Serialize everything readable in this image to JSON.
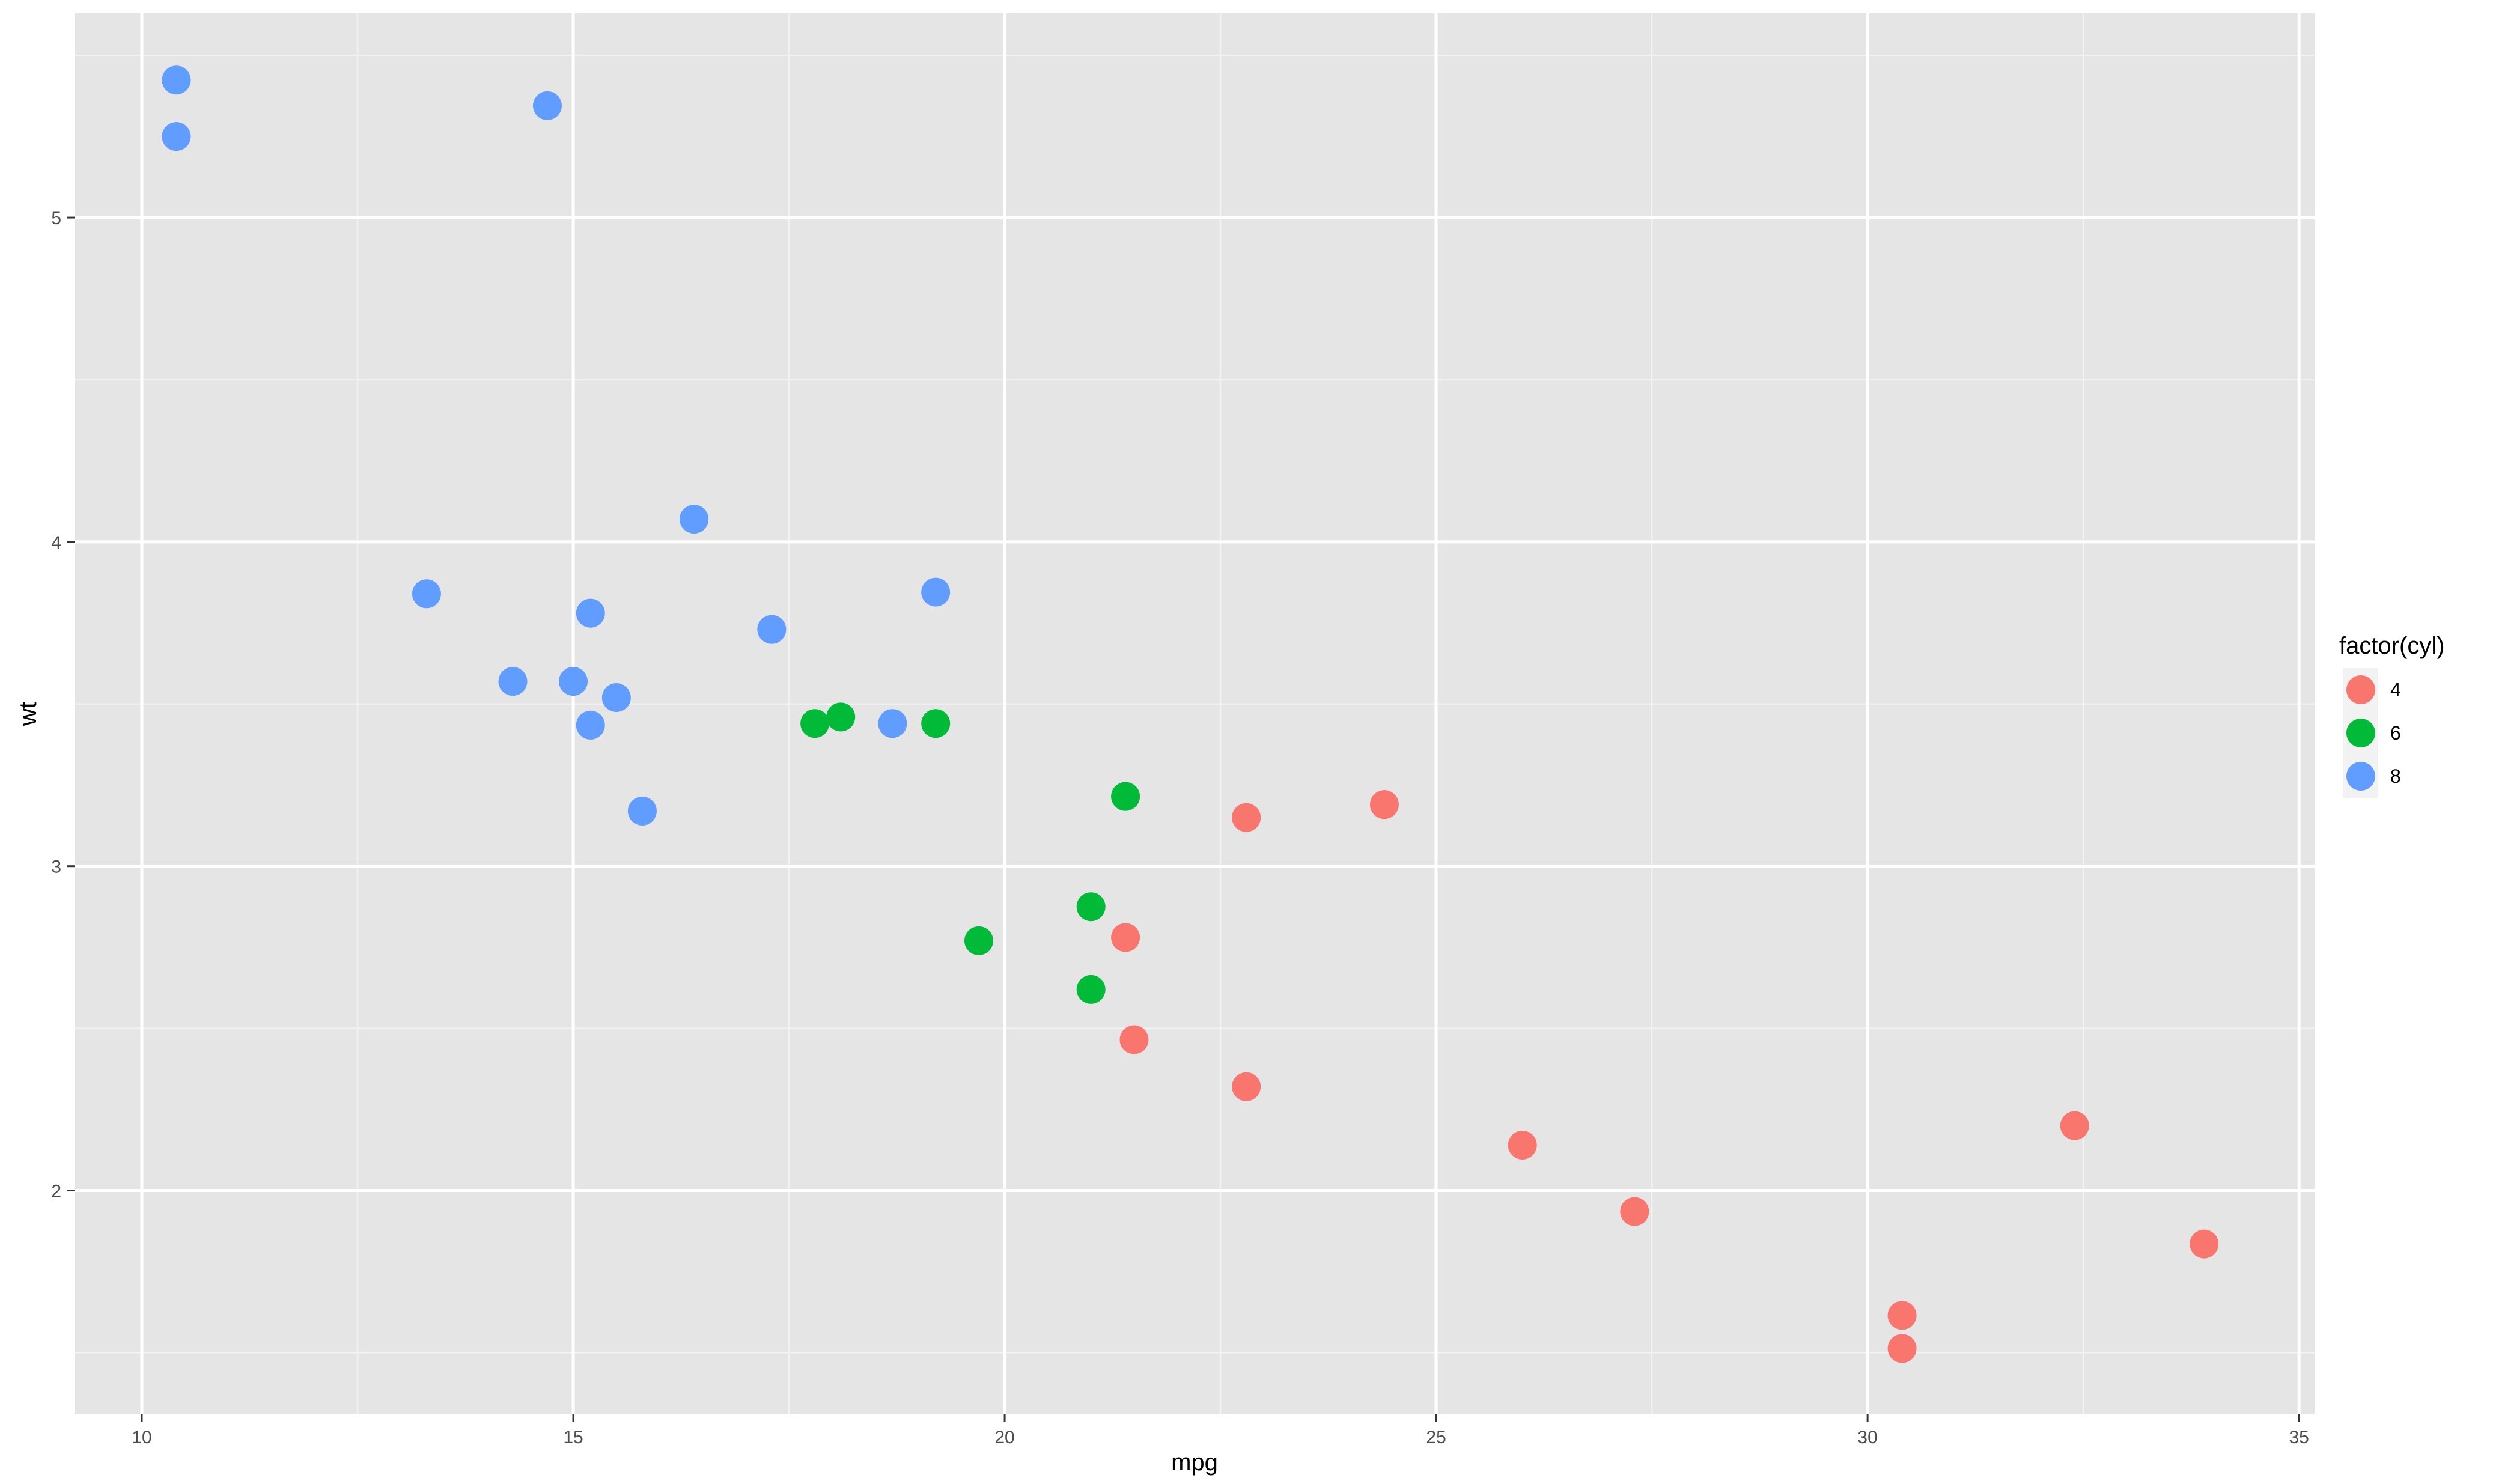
{
  "chart_data": {
    "type": "scatter",
    "title": "",
    "xlabel": "mpg",
    "ylabel": "wt",
    "xlim": [
      9.22,
      35.18
    ],
    "ylim": [
      1.31,
      5.63
    ],
    "x_ticks": [
      10,
      15,
      20,
      25,
      30,
      35
    ],
    "y_ticks": [
      2,
      3,
      4,
      5
    ],
    "grid": true,
    "legend": {
      "title": "factor(cyl)",
      "position": "right"
    },
    "series": [
      {
        "name": "4",
        "color": "#F8766D",
        "points": [
          {
            "x": 22.8,
            "y": 2.32
          },
          {
            "x": 24.4,
            "y": 3.19
          },
          {
            "x": 22.8,
            "y": 3.15
          },
          {
            "x": 32.4,
            "y": 2.2
          },
          {
            "x": 30.4,
            "y": 1.615
          },
          {
            "x": 33.9,
            "y": 1.835
          },
          {
            "x": 21.5,
            "y": 2.465
          },
          {
            "x": 27.3,
            "y": 1.935
          },
          {
            "x": 26.0,
            "y": 2.14
          },
          {
            "x": 30.4,
            "y": 1.513
          },
          {
            "x": 21.4,
            "y": 2.78
          }
        ]
      },
      {
        "name": "6",
        "color": "#00BA38",
        "points": [
          {
            "x": 21.0,
            "y": 2.62
          },
          {
            "x": 21.0,
            "y": 2.875
          },
          {
            "x": 21.4,
            "y": 3.215
          },
          {
            "x": 18.1,
            "y": 3.46
          },
          {
            "x": 19.2,
            "y": 3.44
          },
          {
            "x": 17.8,
            "y": 3.44
          },
          {
            "x": 19.7,
            "y": 2.77
          }
        ]
      },
      {
        "name": "8",
        "color": "#619CFF",
        "points": [
          {
            "x": 18.7,
            "y": 3.44
          },
          {
            "x": 14.3,
            "y": 3.57
          },
          {
            "x": 16.4,
            "y": 4.07
          },
          {
            "x": 17.3,
            "y": 3.73
          },
          {
            "x": 15.2,
            "y": 3.78
          },
          {
            "x": 10.4,
            "y": 5.25
          },
          {
            "x": 10.4,
            "y": 5.424
          },
          {
            "x": 14.7,
            "y": 5.345
          },
          {
            "x": 15.5,
            "y": 3.52
          },
          {
            "x": 15.2,
            "y": 3.435
          },
          {
            "x": 13.3,
            "y": 3.84
          },
          {
            "x": 19.2,
            "y": 3.845
          },
          {
            "x": 15.8,
            "y": 3.17
          },
          {
            "x": 15.0,
            "y": 3.57
          }
        ]
      }
    ],
    "colors": {
      "panel_background": "#E5E5E5",
      "grid_major": "#FFFFFF",
      "grid_minor": "#F2F2F2",
      "legend_key_background": "#F2F2F2"
    }
  }
}
